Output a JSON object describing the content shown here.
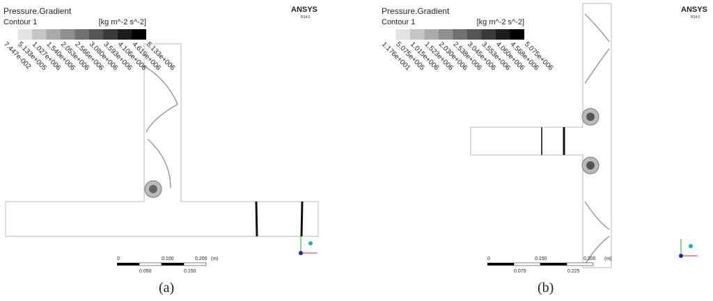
{
  "panels": [
    {
      "title": "Pressure.Gradient",
      "subtitle": "Contour 1",
      "unit": "[kg m^-2 s^-2]",
      "legend_labels": [
        "7.447e-002",
        "5.133e+005",
        "1.027e+006",
        "1.540e+006",
        "2.053e+006",
        "2.566e+006",
        "3.080e+006",
        "3.593e+006",
        "4.106e+006",
        "4.619e+006",
        "5.133e+006"
      ],
      "logo": "ANSYS",
      "version": "R14.5",
      "scale_labels_top": [
        "0",
        "0.100",
        "0.200",
        "(m)"
      ],
      "scale_labels_bottom": [
        "0.050",
        "0.150"
      ],
      "caption": "(a)"
    },
    {
      "title": "Pressure.Gradient",
      "subtitle": "Contour 1",
      "unit": "[kg m^-2 s^-2]",
      "legend_labels": [
        "1.176e+001",
        "5.075e+005",
        "1.015e+006",
        "1.523e+006",
        "2.030e+006",
        "2.538e+006",
        "3.045e+006",
        "3.553e+006",
        "4.060e+006",
        "4.568e+006",
        "5.075e+006"
      ],
      "logo": "ANSYS",
      "version": "R14.5",
      "scale_labels_top": [
        "0",
        "0.150",
        "0.300",
        "(m)"
      ],
      "scale_labels_bottom": [
        "0.075",
        "0.225"
      ],
      "caption": "(b)"
    }
  ]
}
